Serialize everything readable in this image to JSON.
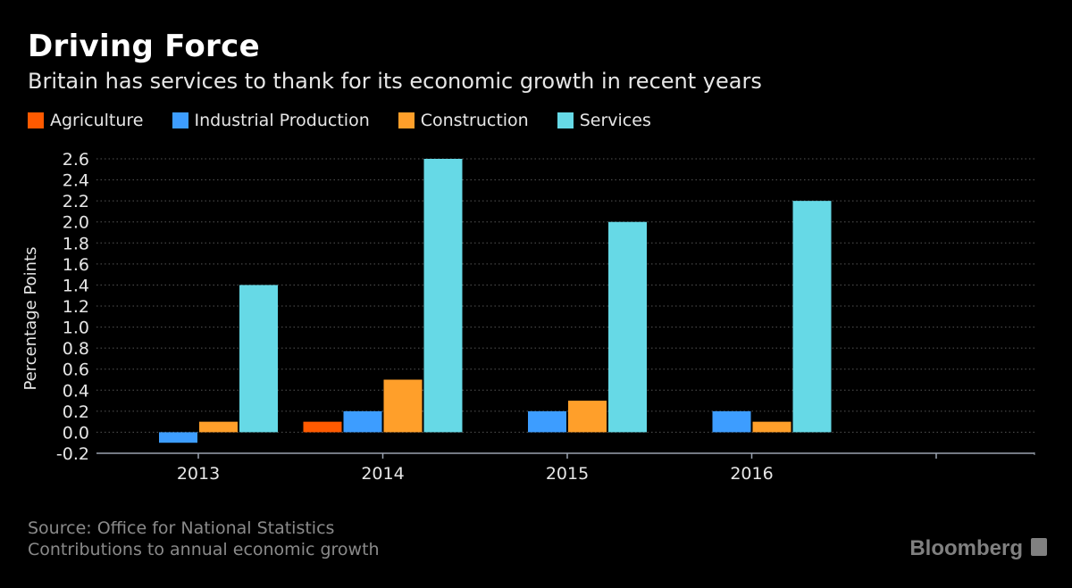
{
  "header": {
    "title": "Driving Force",
    "subtitle": "Britain has services to thank for its economic growth in recent years"
  },
  "footer": {
    "source": "Source: Office for National Statistics",
    "note": "Contributions to annual economic growth",
    "brand": "Bloomberg",
    "brand_icon": "bloomberg-chart-icon"
  },
  "colors": {
    "background": "#000000",
    "agriculture": "#ff5a00",
    "industrial": "#3d9dff",
    "construction": "#ff9f2a",
    "services": "#66d9e6",
    "grid": "#555555",
    "axis": "#9aa3b0"
  },
  "chart_data": {
    "type": "bar",
    "title": "Driving Force",
    "subtitle": "Britain has services to thank for its economic growth in recent years",
    "xlabel": "",
    "ylabel": "Percentage Points",
    "categories": [
      "2013",
      "2014",
      "2015",
      "2016"
    ],
    "extra_empty_category_tick": true,
    "series": [
      {
        "name": "Agriculture",
        "color": "#ff5a00",
        "values": [
          0.0,
          0.1,
          0.0,
          0.0
        ]
      },
      {
        "name": "Industrial Production",
        "color": "#3d9dff",
        "values": [
          -0.1,
          0.2,
          0.2,
          0.2
        ]
      },
      {
        "name": "Construction",
        "color": "#ff9f2a",
        "values": [
          0.1,
          0.5,
          0.3,
          0.1
        ]
      },
      {
        "name": "Services",
        "color": "#66d9e6",
        "values": [
          1.4,
          2.6,
          2.0,
          2.2
        ]
      }
    ],
    "ylim": [
      -0.2,
      2.6
    ],
    "yticks": [
      "-0.2",
      "0.0",
      "0.2",
      "0.4",
      "0.6",
      "0.8",
      "1.0",
      "1.2",
      "1.4",
      "1.6",
      "1.8",
      "2.0",
      "2.2",
      "2.4",
      "2.6"
    ],
    "grid": true,
    "legend_position": "top-left"
  }
}
